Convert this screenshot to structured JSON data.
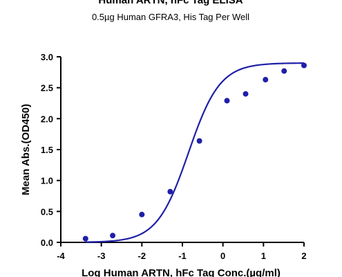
{
  "chart_data": {
    "type": "scatter",
    "title": "Human ARTN, hFc Tag ELISA",
    "subtitle": "0.5µg Human GFRA3, His Tag Per Well",
    "xlabel": "Log Human ARTN, hFc Tag Conc.(µg/ml)",
    "ylabel": "Mean Abs.(OD450)",
    "xlim": [
      -4,
      2
    ],
    "ylim": [
      0,
      3.0
    ],
    "xticks": [
      "-4",
      "-3",
      "-2",
      "-1",
      "0",
      "1",
      "2"
    ],
    "yticks": [
      "0.0",
      "0.5",
      "1.0",
      "1.5",
      "2.0",
      "2.5",
      "3.0"
    ],
    "grid": false,
    "colors": {
      "series": "#1f1fa8",
      "axis": "#000000"
    },
    "series": [
      {
        "points": [
          {
            "x": -3.39,
            "y": 0.06
          },
          {
            "x": -2.72,
            "y": 0.11
          },
          {
            "x": -2.0,
            "y": 0.45
          },
          {
            "x": -1.3,
            "y": 0.82
          },
          {
            "x": -0.58,
            "y": 1.64
          },
          {
            "x": 0.1,
            "y": 2.29
          },
          {
            "x": 0.56,
            "y": 2.4
          },
          {
            "x": 1.05,
            "y": 2.63
          },
          {
            "x": 1.51,
            "y": 2.77
          },
          {
            "x": 2.0,
            "y": 2.86
          }
        ],
        "fit": {
          "model": "4PL",
          "bottom": 0.0,
          "top": 2.9,
          "logEC50": -0.85,
          "hillslope": 1.12
        }
      }
    ]
  }
}
